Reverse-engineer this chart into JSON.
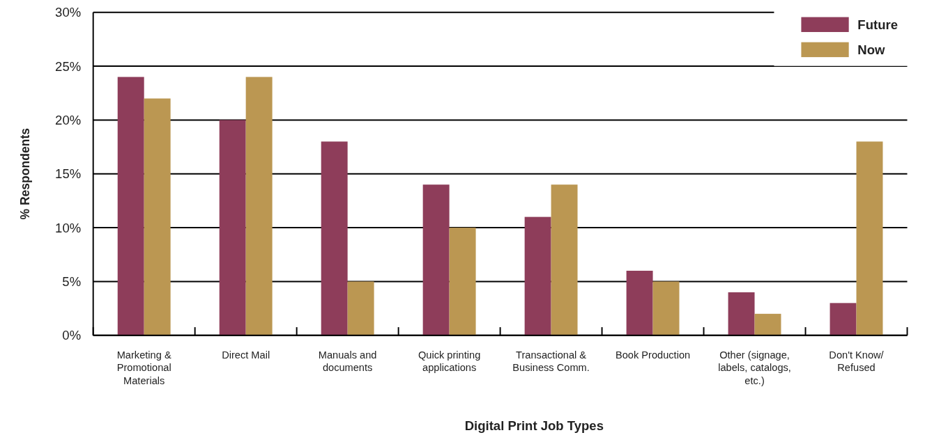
{
  "chart_data": {
    "type": "bar",
    "xlabel": "Digital Print Job Types",
    "ylabel": "% Respondents",
    "categories": [
      "Marketing & Promotional Materials",
      "Direct Mail",
      "Manuals and documents",
      "Quick printing applications",
      "Transactional & Business Comm.",
      "Book Production",
      "Other (signage, labels, catalogs, etc.)",
      "Don't Know/ Refused"
    ],
    "series": [
      {
        "name": "Future",
        "color": "#8e3d5a",
        "values": [
          24,
          20,
          18,
          14,
          11,
          6,
          4,
          3
        ]
      },
      {
        "name": "Now",
        "color": "#bb9752",
        "values": [
          22,
          24,
          5,
          10,
          14,
          5,
          2,
          18
        ]
      }
    ],
    "ylim": [
      0,
      30
    ],
    "yticks": [
      {
        "value": 0,
        "label": "0%"
      },
      {
        "value": 5,
        "label": "5%"
      },
      {
        "value": 10,
        "label": "10%"
      },
      {
        "value": 15,
        "label": "15%"
      },
      {
        "value": 20,
        "label": "20%"
      },
      {
        "value": 25,
        "label": "25%"
      },
      {
        "value": 30,
        "label": "30%"
      }
    ],
    "grid": "y",
    "legend": "top right"
  }
}
